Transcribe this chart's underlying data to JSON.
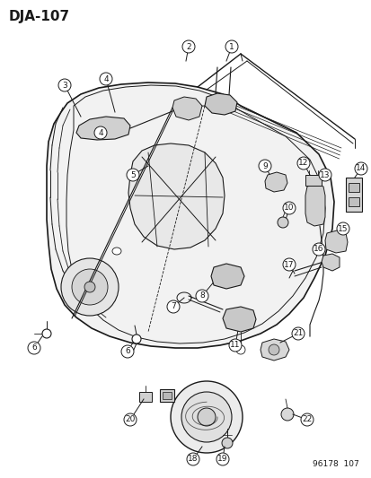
{
  "title": "DJA-107",
  "watermark": "96178  107",
  "bg_color": "#ffffff",
  "line_color": "#1a1a1a",
  "title_fontsize": 11,
  "label_fontsize": 6.5,
  "watermark_fontsize": 6.5
}
